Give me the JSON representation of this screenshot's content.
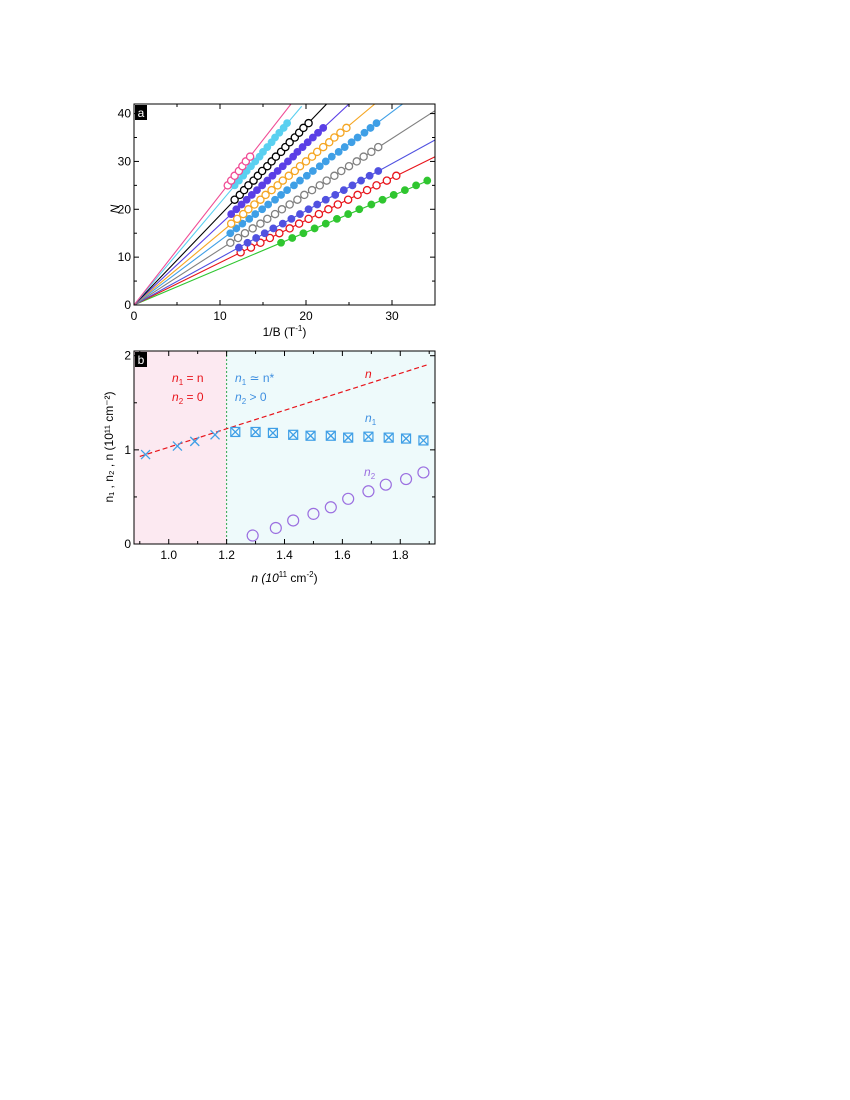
{
  "chart_data": [
    {
      "panel_label": "a",
      "type": "scatter",
      "xlabel": "1/B (T",
      "xlabel_sup": "-1",
      "xlabel_close": ")",
      "ylabel": "N",
      "xlim": [
        0,
        35
      ],
      "ylim": [
        0,
        42
      ],
      "x_ticks": [
        0,
        10,
        20,
        30
      ],
      "y_ticks": [
        0,
        10,
        20,
        30,
        40
      ],
      "grid": false,
      "series": [
        {
          "color": "#2fc62f",
          "filled": true,
          "slope": 0.76,
          "x_end": 34.3,
          "x": [
            17.1,
            18.4,
            19.7,
            21.0,
            22.3,
            23.6,
            24.9,
            26.2,
            27.6,
            28.9,
            30.2,
            31.5,
            32.8,
            34.1
          ],
          "y": [
            13,
            14,
            15,
            16,
            17,
            18,
            19,
            20,
            21,
            22,
            23,
            24,
            25,
            26
          ]
        },
        {
          "color": "#e8141b",
          "filled": false,
          "slope": 0.885,
          "x_end": 35,
          "x": [
            12.4,
            13.6,
            14.7,
            15.8,
            16.9,
            18.1,
            19.2,
            20.3,
            21.5,
            22.6,
            23.7,
            24.9,
            26.0,
            27.1,
            28.2,
            29.4,
            30.5
          ],
          "y": [
            11,
            12,
            13,
            14,
            15,
            16,
            17,
            18,
            19,
            20,
            21,
            22,
            23,
            24,
            25,
            26,
            27
          ]
        },
        {
          "color": "#5051e0",
          "filled": true,
          "slope": 0.985,
          "x_end": 35,
          "x": [
            12.2,
            13.2,
            14.2,
            15.2,
            16.2,
            17.3,
            18.3,
            19.3,
            20.3,
            21.3,
            22.3,
            23.4,
            24.4,
            25.4,
            26.4,
            27.4,
            28.4
          ],
          "y": [
            12,
            13,
            14,
            15,
            16,
            17,
            18,
            19,
            20,
            21,
            22,
            23,
            24,
            25,
            26,
            27,
            28
          ]
        },
        {
          "color": "#808080",
          "filled": false,
          "slope": 1.16,
          "x_end": 35,
          "x": [
            11.2,
            12.1,
            12.9,
            13.8,
            14.7,
            15.5,
            16.4,
            17.2,
            18.1,
            19.0,
            19.8,
            20.7,
            21.6,
            22.4,
            23.3,
            24.1,
            25.0,
            25.9,
            26.7,
            27.6,
            28.4
          ],
          "y": [
            13,
            14,
            15,
            16,
            17,
            18,
            19,
            20,
            21,
            22,
            23,
            24,
            25,
            26,
            27,
            28,
            29,
            30,
            31,
            32,
            33
          ]
        },
        {
          "color": "#3f9fe6",
          "filled": true,
          "slope": 1.345,
          "x_end": 32.3,
          "x": [
            11.2,
            11.9,
            12.6,
            13.4,
            14.1,
            14.9,
            15.6,
            16.4,
            17.1,
            17.8,
            18.6,
            19.3,
            20.1,
            20.8,
            21.6,
            22.3,
            23.0,
            23.8,
            24.5,
            25.3,
            26.0,
            26.8,
            27.5,
            28.2
          ],
          "y": [
            15,
            16,
            17,
            18,
            19,
            20,
            21,
            22,
            23,
            24,
            25,
            26,
            27,
            28,
            29,
            30,
            31,
            32,
            33,
            34,
            35,
            36,
            37,
            38
          ]
        },
        {
          "color": "#f5a623",
          "filled": false,
          "slope": 1.5,
          "x_end": 28,
          "x": [
            11.3,
            12.0,
            12.7,
            13.3,
            14.0,
            14.7,
            15.3,
            16.0,
            16.7,
            17.3,
            18.0,
            18.7,
            19.3,
            20.0,
            20.7,
            21.3,
            22.0,
            22.7,
            23.3,
            24.0,
            24.7
          ],
          "y": [
            17,
            18,
            19,
            20,
            21,
            22,
            23,
            24,
            25,
            26,
            27,
            28,
            29,
            30,
            31,
            32,
            33,
            34,
            35,
            36,
            37
          ]
        },
        {
          "color": "#5a3fe6",
          "filled": true,
          "slope": 1.68,
          "x_end": 25,
          "x": [
            11.3,
            11.9,
            12.5,
            13.1,
            13.7,
            14.3,
            14.9,
            15.5,
            16.1,
            16.7,
            17.3,
            17.9,
            18.5,
            19.0,
            19.6,
            20.2,
            20.8,
            21.4,
            22.0
          ],
          "y": [
            19,
            20,
            21,
            22,
            23,
            24,
            25,
            26,
            27,
            28,
            29,
            30,
            31,
            32,
            33,
            34,
            35,
            36,
            37
          ]
        },
        {
          "color": "#000000",
          "filled": false,
          "slope": 1.875,
          "x_end": 22.4,
          "x": [
            11.7,
            12.3,
            12.8,
            13.3,
            13.9,
            14.4,
            14.9,
            15.5,
            16.0,
            16.5,
            17.1,
            17.6,
            18.1,
            18.7,
            19.2,
            19.7,
            20.3
          ],
          "y": [
            22,
            23,
            24,
            25,
            26,
            27,
            28,
            29,
            30,
            31,
            32,
            33,
            34,
            35,
            36,
            37,
            38
          ]
        },
        {
          "color": "#5ad0f0",
          "filled": true,
          "slope": 2.13,
          "x_end": 19.5,
          "x": [
            11.7,
            12.2,
            12.7,
            13.1,
            13.6,
            14.1,
            14.6,
            15.0,
            15.5,
            16.0,
            16.4,
            16.9,
            17.4,
            17.8
          ],
          "y": [
            25,
            26,
            27,
            28,
            29,
            30,
            31,
            32,
            33,
            34,
            35,
            36,
            37,
            38
          ]
        },
        {
          "color": "#f04c95",
          "filled": false,
          "slope": 2.3,
          "x_end": 18.3,
          "x": [
            10.9,
            11.3,
            11.7,
            12.2,
            12.6,
            13.0,
            13.5
          ],
          "y": [
            25,
            26,
            27,
            28,
            29,
            30,
            31
          ]
        }
      ]
    },
    {
      "panel_label": "b",
      "type": "scatter",
      "xlabel": "n (10",
      "xlabel_sup": "11",
      "xlabel_unit": " cm",
      "xlabel_sup2": "-2",
      "xlabel_close": ")",
      "ylabel": "n₁ , n₂ , n (10¹¹ cm⁻²)",
      "xlim": [
        0.88,
        1.92
      ],
      "ylim": [
        0,
        2.05
      ],
      "x_ticks": [
        1.0,
        1.2,
        1.4,
        1.6,
        1.8
      ],
      "y_ticks": [
        0,
        1,
        2
      ],
      "grid": false,
      "boundary_x": 1.2,
      "regions": [
        {
          "x": [
            0.88,
            1.2
          ],
          "color": "#fce9f1"
        },
        {
          "x": [
            1.2,
            1.92
          ],
          "color": "#eefafb"
        }
      ],
      "line_n": {
        "x": [
          0.9,
          1.9
        ],
        "y": [
          0.93,
          1.91
        ],
        "color": "#e8141b"
      },
      "n1_cross": {
        "color": "#3f9fe6",
        "x": [
          0.92,
          1.03,
          1.09,
          1.16,
          1.23,
          1.3,
          1.36,
          1.43,
          1.49,
          1.56,
          1.62,
          1.69,
          1.76,
          1.82,
          1.88
        ],
        "y": [
          0.95,
          1.04,
          1.09,
          1.16,
          1.19,
          1.19,
          1.18,
          1.16,
          1.15,
          1.15,
          1.13,
          1.14,
          1.13,
          1.12,
          1.1
        ]
      },
      "n1_box_x": [
        1.23,
        1.3,
        1.36,
        1.43,
        1.49,
        1.56,
        1.62,
        1.69,
        1.76,
        1.82,
        1.88
      ],
      "n2": {
        "color": "#9b6fe0",
        "x": [
          1.29,
          1.37,
          1.43,
          1.5,
          1.56,
          1.62,
          1.69,
          1.75,
          1.82,
          1.88
        ],
        "y": [
          0.09,
          0.17,
          0.25,
          0.32,
          0.39,
          0.48,
          0.56,
          0.63,
          0.69,
          0.76
        ]
      },
      "annotations": {
        "left1_a": "n",
        "left1_sub": "1",
        "left1_b": " = n",
        "left2_a": "n",
        "left2_sub": "2",
        "left2_b": " = 0",
        "right1_a": "n",
        "right1_sub": "1",
        "right1_b": " ≃ n*",
        "right2_a": "n",
        "right2_sub": "2",
        "right2_b": " > 0",
        "label_n": "n",
        "label_n1": "n",
        "label_n1_sub": "1",
        "label_n2": "n",
        "label_n2_sub": "2"
      }
    }
  ]
}
